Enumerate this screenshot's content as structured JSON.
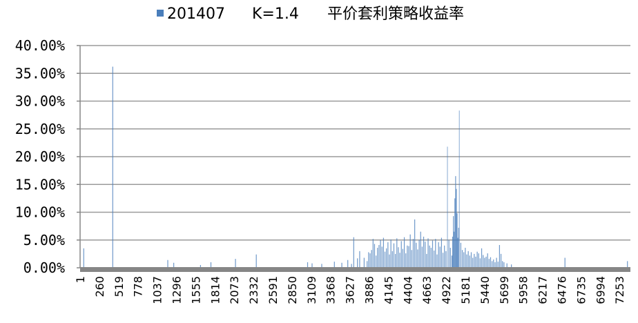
{
  "chart_data": {
    "type": "bar",
    "legend": {
      "position": "top",
      "series_label": "201407",
      "k_label": "K=1.4",
      "title_text": "平价套利策略收益率"
    },
    "colors": {
      "series": "#4a7ebb",
      "grid": "#9a9a9a",
      "axis": "#868686"
    },
    "grid": true,
    "x_range": [
      1,
      7400
    ],
    "ylim": [
      0,
      40
    ],
    "y_ticks": [
      "0.00%",
      "5.00%",
      "10.00%",
      "15.00%",
      "20.00%",
      "25.00%",
      "30.00%",
      "35.00%",
      "40.00%"
    ],
    "x_ticks": [
      "1",
      "260",
      "519",
      "778",
      "1037",
      "1296",
      "1555",
      "1814",
      "2073",
      "2332",
      "2591",
      "2850",
      "3109",
      "3368",
      "3627",
      "3886",
      "4145",
      "4404",
      "4663",
      "4922",
      "5181",
      "5440",
      "5699",
      "5958",
      "6217",
      "6476",
      "6735",
      "6994",
      "7253"
    ],
    "series": [
      {
        "name": "201407",
        "x": [
          50,
          440,
          1180,
          1260,
          1620,
          1760,
          2090,
          2370,
          3060,
          3120,
          3250,
          3420,
          3520,
          3600,
          3650,
          3680,
          3730,
          3760,
          3820,
          3860,
          3880,
          3900,
          3920,
          3940,
          3960,
          3980,
          4000,
          4020,
          4040,
          4060,
          4080,
          4100,
          4120,
          4140,
          4160,
          4180,
          4200,
          4220,
          4240,
          4260,
          4280,
          4300,
          4320,
          4340,
          4360,
          4380,
          4400,
          4420,
          4440,
          4460,
          4480,
          4500,
          4520,
          4540,
          4560,
          4580,
          4600,
          4620,
          4640,
          4660,
          4680,
          4700,
          4720,
          4740,
          4760,
          4780,
          4800,
          4820,
          4840,
          4860,
          4880,
          4900,
          4920,
          4940,
          4960,
          4980,
          5000,
          5010,
          5020,
          5030,
          5040,
          5050,
          5060,
          5070,
          5080,
          5090,
          5100,
          5120,
          5140,
          5160,
          5180,
          5200,
          5220,
          5240,
          5260,
          5280,
          5300,
          5320,
          5340,
          5360,
          5380,
          5400,
          5420,
          5440,
          5460,
          5480,
          5500,
          5520,
          5540,
          5560,
          5580,
          5600,
          5620,
          5640,
          5660,
          5680,
          5700,
          5740,
          5800,
          6520,
          7360
        ],
        "values": [
          3.5,
          36.2,
          1.4,
          0.9,
          0.5,
          1.0,
          1.6,
          2.4,
          1.0,
          0.8,
          0.7,
          1.1,
          0.9,
          1.4,
          0.7,
          5.5,
          1.7,
          3.0,
          1.8,
          1.2,
          2.8,
          2.6,
          3.2,
          5.2,
          4.3,
          2.2,
          3.6,
          4.1,
          5.0,
          3.8,
          5.4,
          2.9,
          3.5,
          4.6,
          2.4,
          5.1,
          3.0,
          4.4,
          2.5,
          5.3,
          3.7,
          2.7,
          4.8,
          3.4,
          5.5,
          2.6,
          4.0,
          3.9,
          6.0,
          3.2,
          5.2,
          8.7,
          4.5,
          3.3,
          5.0,
          6.5,
          3.8,
          5.6,
          4.7,
          2.5,
          5.3,
          4.0,
          3.6,
          4.9,
          3.1,
          5.2,
          2.4,
          4.6,
          3.8,
          5.4,
          2.7,
          4.0,
          3.0,
          21.8,
          5.0,
          3.6,
          2.2,
          5.6,
          9.3,
          6.5,
          12.5,
          16.5,
          14.2,
          9.8,
          5.4,
          7.2,
          28.3,
          4.5,
          3.2,
          2.8,
          3.6,
          2.4,
          3.0,
          2.2,
          2.8,
          1.8,
          2.5,
          2.0,
          2.9,
          2.6,
          1.7,
          3.5,
          2.3,
          1.8,
          2.0,
          2.6,
          1.6,
          1.9,
          1.2,
          1.5,
          1.0,
          1.8,
          1.1,
          4.1,
          2.5,
          1.2,
          1.0,
          0.8,
          0.6,
          1.8,
          1.2
        ]
      }
    ]
  }
}
